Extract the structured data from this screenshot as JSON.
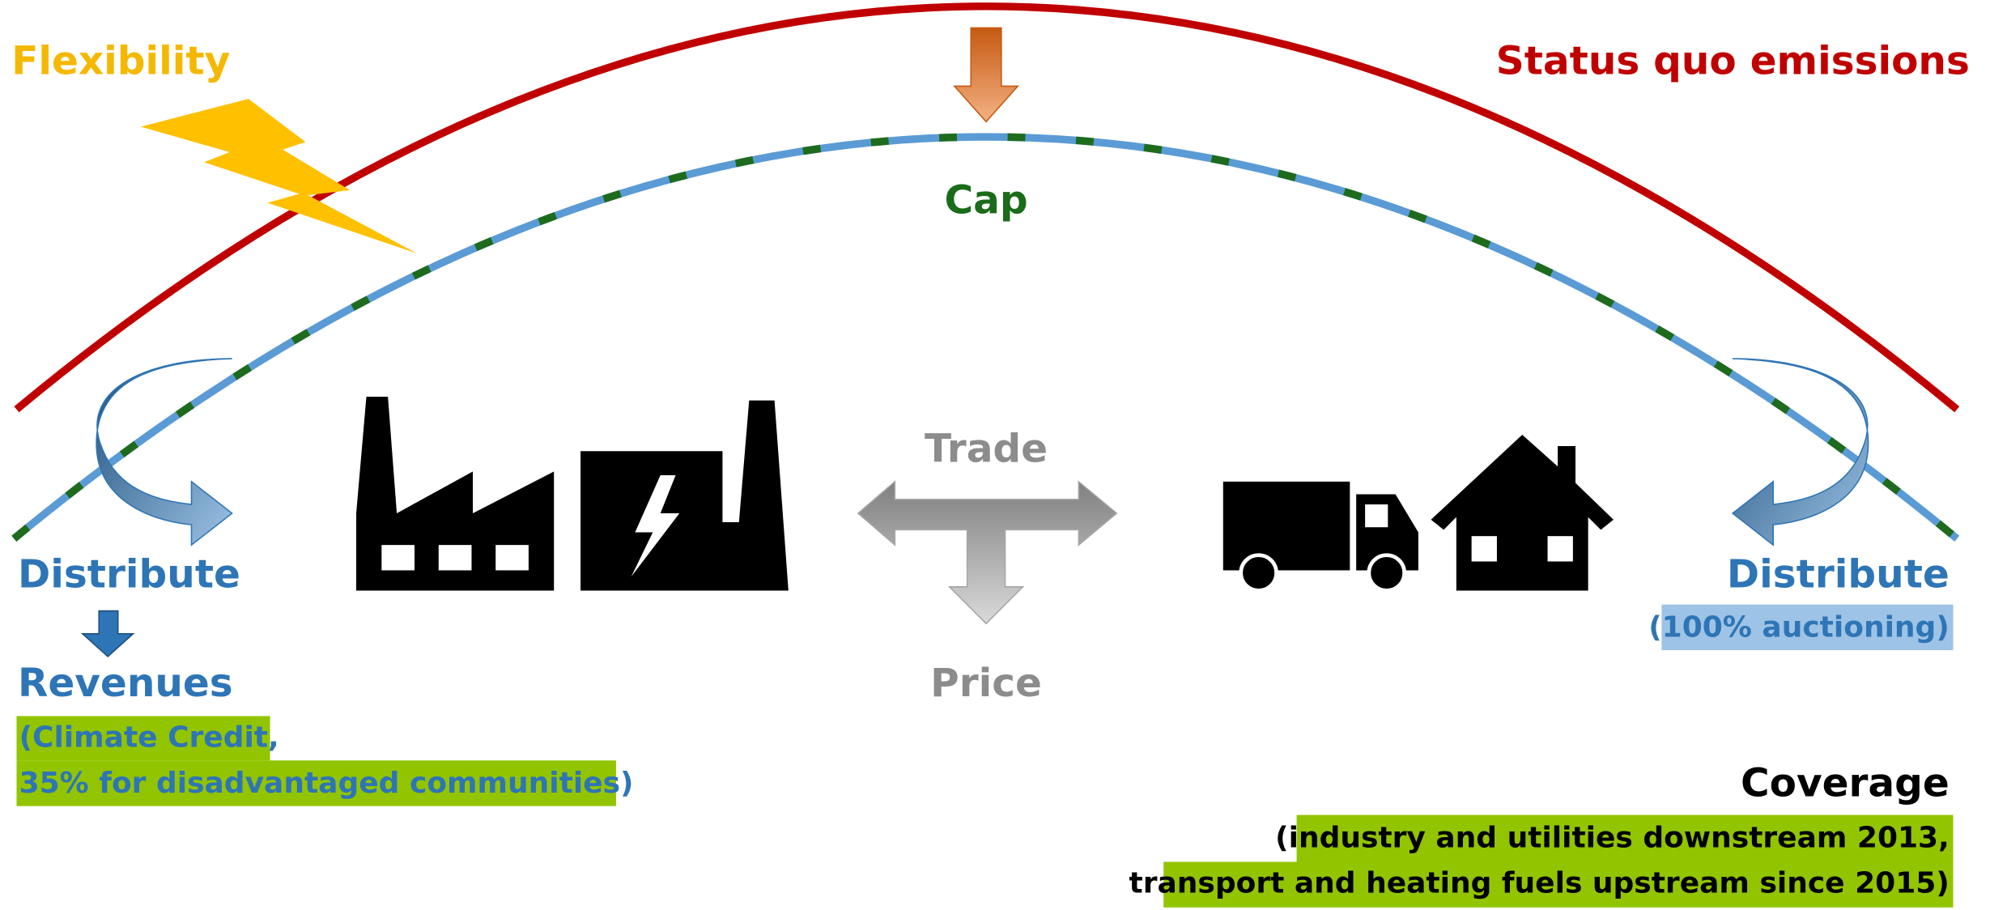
{
  "flexibility": "Flexibility",
  "status_quo": "Status quo emissions",
  "cap": "Cap",
  "trade": "Trade",
  "price": "Price",
  "left": {
    "distribute": "Distribute",
    "revenues": "Revenues",
    "notes": [
      "(Climate Credit,",
      "35% for disadvantaged communities)"
    ]
  },
  "right": {
    "distribute": "Distribute",
    "note": "(100% auctioning)"
  },
  "coverage": {
    "title": "Coverage",
    "notes": [
      "(industry and utilities downstream 2013,",
      "transport and heating fuels upstream since 2015)"
    ]
  }
}
